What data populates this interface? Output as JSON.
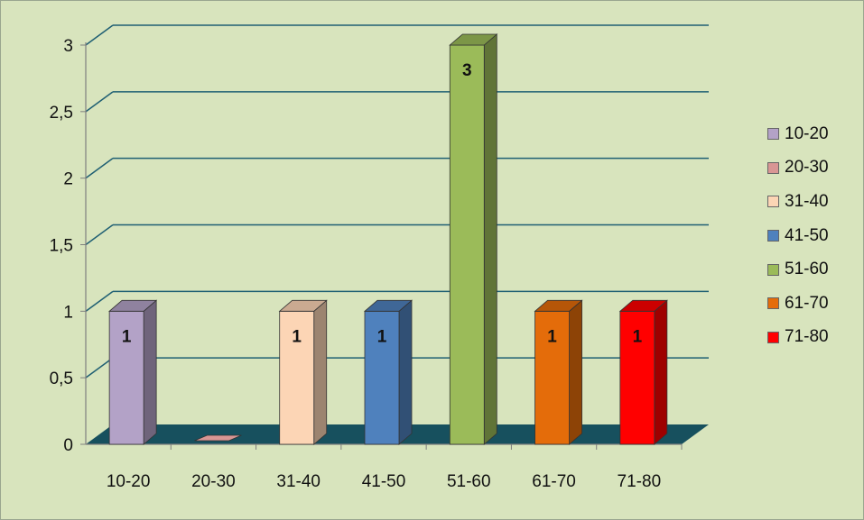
{
  "chart_data": {
    "type": "bar",
    "title": "",
    "xlabel": "",
    "ylabel": "",
    "categories": [
      "10-20",
      "20-30",
      "31-40",
      "41-50",
      "51-60",
      "61-70",
      "71-80"
    ],
    "values": [
      1,
      0,
      1,
      1,
      3,
      1,
      1
    ],
    "data_labels": [
      "1",
      "",
      "1",
      "1",
      "3",
      "1",
      "1"
    ],
    "colors": [
      "#b3a2c7",
      "#d99694",
      "#fcd5b5",
      "#4f81bd",
      "#9bbb59",
      "#e46c0a",
      "#ff0000"
    ],
    "ylim": [
      0,
      3
    ],
    "yticks": [
      0,
      0.5,
      1,
      1.5,
      2,
      2.5,
      3
    ],
    "ytick_labels": [
      "0",
      "0,5",
      "1",
      "1,5",
      "2",
      "2,5",
      "3"
    ],
    "grid": true,
    "legend": {
      "position": "right",
      "entries": [
        "10-20",
        "20-30",
        "31-40",
        "41-50",
        "51-60",
        "61-70",
        "71-80"
      ]
    },
    "style": {
      "background": "#d8e4bd",
      "gridline_color": "#1f5f73",
      "floor_color": "#17505e"
    }
  }
}
